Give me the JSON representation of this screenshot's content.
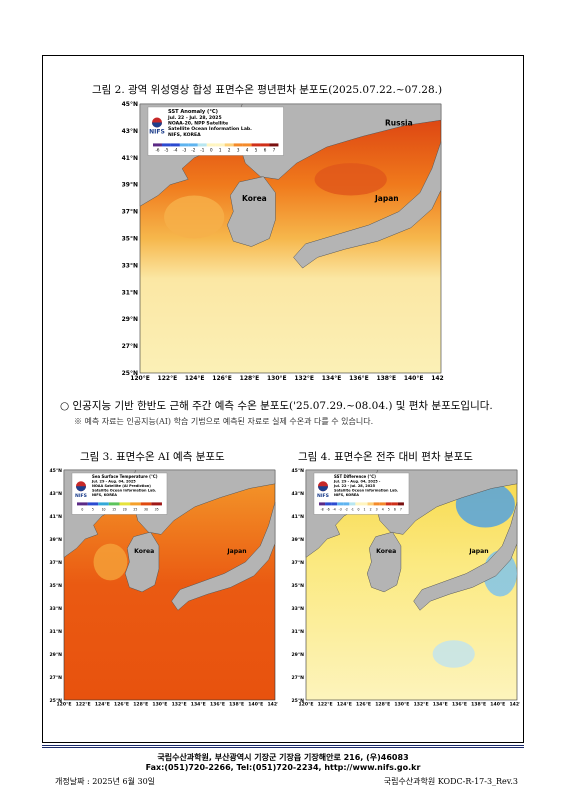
{
  "figure2": {
    "caption": "그림 2. 광역 위성영상 합성 표면수온 평년편차 분포도(2025.07.22.~07.28.)",
    "map": {
      "logo": "NIFS",
      "legend_title": "SST Anomaly (°C)",
      "legend_lines": [
        "Jul. 22 - Jul. 28, 2025",
        "NOAA-20, NPP Satellite",
        "Satellite Ocean Information Lab.",
        "NIFS, KOREA"
      ],
      "scale": [
        "-6",
        "-5",
        "-4",
        "-3",
        "-2",
        "-1",
        "0",
        "1",
        "2",
        "3",
        "4",
        "5",
        "6",
        "7"
      ],
      "places": [
        "Russia",
        "Korea",
        "Japan"
      ],
      "y_labels": [
        "45°N",
        "43°N",
        "41°N",
        "39°N",
        "37°N",
        "35°N",
        "33°N",
        "31°N",
        "29°N",
        "27°N",
        "25°N"
      ],
      "x_labels": [
        "120°E",
        "122°E",
        "124°E",
        "126°E",
        "128°E",
        "130°E",
        "132°E",
        "134°E",
        "136°E",
        "138°E",
        "140°E",
        "142°E"
      ]
    }
  },
  "bullet": "○ 인공지능 기반 한반도 근해 주간 예측 수온 분포도('25.07.29.~08.04.) 및 편차 분포도입니다.",
  "note": "※ 예측 자료는 인공지능(AI) 학습 기법으로 예측된 자료로 실제 수온과 다를 수 있습니다.",
  "figure3": {
    "caption": "그림 3. 표면수온 AI 예측 분포도",
    "map": {
      "logo": "NIFS",
      "legend_title": "Sea Surface Temperature (°C)",
      "legend_lines": [
        "Jul. 29 - Aug. 04, 2025",
        "NOAA Satellite (AI Prediction)",
        "Satellite Ocean Information Lab.",
        "NIFS, KOREA"
      ],
      "scale": [
        "0",
        "5",
        "10",
        "15",
        "20",
        "25",
        "30",
        "35"
      ],
      "places": [
        "Korea",
        "Japan"
      ],
      "y_labels": [
        "45°N",
        "43°N",
        "41°N",
        "39°N",
        "37°N",
        "35°N",
        "33°N",
        "31°N",
        "29°N",
        "27°N",
        "25°N"
      ],
      "x_labels": [
        "120°E",
        "122°E",
        "124°E",
        "126°E",
        "128°E",
        "130°E",
        "132°E",
        "134°E",
        "136°E",
        "138°E",
        "140°E",
        "142°E"
      ]
    }
  },
  "figure4": {
    "caption": "그림 4. 표면수온 전주 대비 편차 분포도",
    "map": {
      "logo": "NIFS",
      "legend_title": "SST Difference (°C)",
      "legend_lines": [
        "Jul. 29 - Aug. 04, 2025 -",
        "Jul. 22 - Jul. 28, 2025",
        "Satellite Ocean Information Lab.",
        "NIFS, KOREA"
      ],
      "scale": [
        "-8",
        "-6",
        "-4",
        "-3",
        "-2",
        "-1",
        "0",
        "1",
        "2",
        "3",
        "4",
        "5",
        "6",
        "7"
      ],
      "places": [
        "Korea",
        "Japan"
      ],
      "y_labels": [
        "45°N",
        "43°N",
        "41°N",
        "39°N",
        "37°N",
        "35°N",
        "33°N",
        "31°N",
        "29°N",
        "27°N",
        "25°N"
      ],
      "x_labels": [
        "120°E",
        "122°E",
        "124°E",
        "126°E",
        "128°E",
        "130°E",
        "132°E",
        "134°E",
        "136°E",
        "138°E",
        "140°E",
        "142°E"
      ]
    }
  },
  "footer": {
    "address": "국립수산과학원, 부산광역시 기장군 기장읍 기장해안로 216, (우)46083",
    "contact": "Fax:(051)720-2266, Tel:(051)720-2234, http://www.nifs.go.kr",
    "date": "개정날짜 : 2025년 6월 30일",
    "doc_code": "국립수산과학원 KODC-R-17-3_Rev.3"
  }
}
